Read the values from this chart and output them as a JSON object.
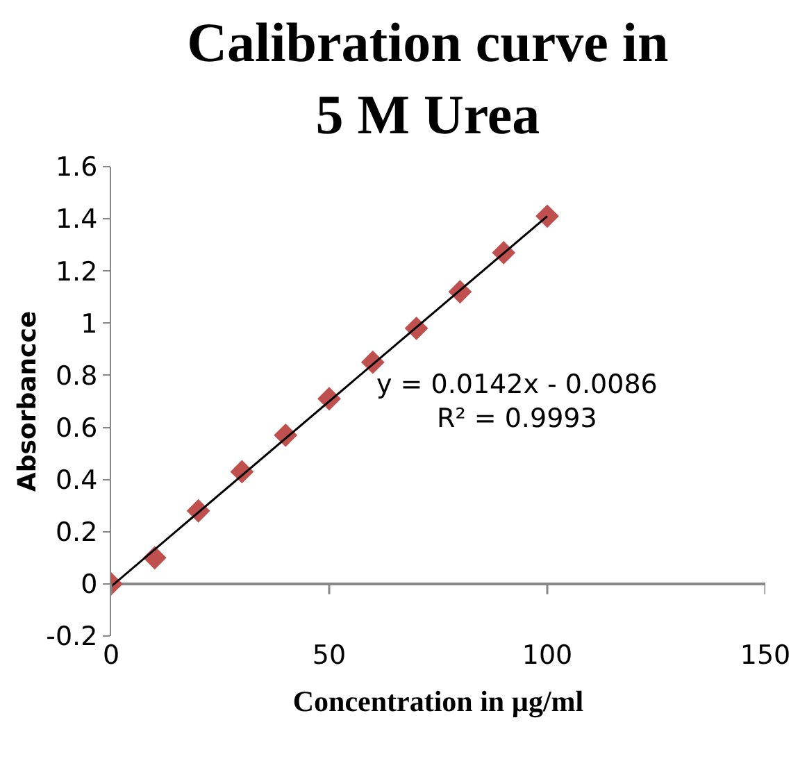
{
  "chart_data": {
    "type": "scatter",
    "title": "Calibration curve in\n5 M Urea",
    "xlabel": "Concentration in µg/ml",
    "ylabel": "Absorbancce",
    "x": [
      0,
      10,
      20,
      30,
      40,
      50,
      60,
      70,
      80,
      90,
      100
    ],
    "series": [
      {
        "color": "#c0504d",
        "marker": "diamond",
        "values": [
          0,
          0.1,
          0.28,
          0.43,
          0.57,
          0.71,
          0.85,
          0.98,
          1.12,
          1.27,
          1.41
        ]
      },
      {
        "type": "line",
        "color": "#000000",
        "marker": "none",
        "line_style": "solid",
        "x": [
          0,
          100
        ],
        "values": [
          -0.01,
          1.41
        ]
      }
    ],
    "annotations": [
      "y = 0.0142x - 0.0086\nR² = 0.9993"
    ],
    "xlim": [
      0,
      150
    ],
    "xticks": [
      0,
      50,
      100,
      150
    ],
    "ylim": [
      -0.2,
      1.6
    ],
    "yticks": [
      -0.2,
      0,
      0.2,
      0.4,
      0.6,
      0.8,
      1,
      1.2,
      1.4,
      1.6
    ]
  }
}
